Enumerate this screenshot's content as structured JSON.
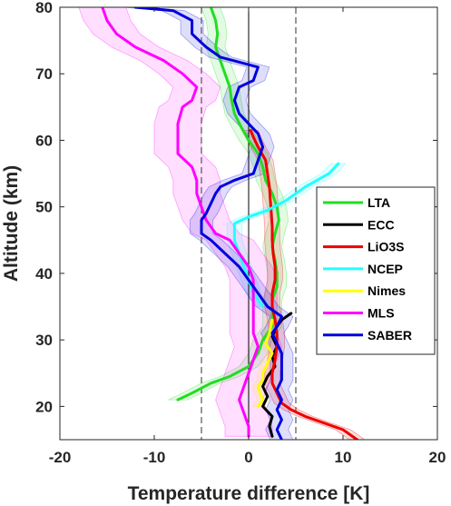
{
  "chart_data": {
    "type": "line",
    "xlabel": "Temperature difference [K]",
    "ylabel": "Altitude (km)",
    "xlim": [
      -20,
      20
    ],
    "ylim": [
      15,
      80
    ],
    "xticks": [
      -20,
      -10,
      0,
      10,
      20
    ],
    "yticks": [
      20,
      30,
      40,
      50,
      60,
      70,
      80
    ],
    "xtick_labels": [
      "-20",
      "-10",
      "0",
      "10",
      "20"
    ],
    "ytick_labels": [
      "20",
      "30",
      "40",
      "50",
      "60",
      "70",
      "80"
    ],
    "vlines": [
      {
        "x": -5,
        "style": "dashed",
        "color": "#555555"
      },
      {
        "x": 0,
        "style": "solid",
        "color": "#000000"
      },
      {
        "x": 5,
        "style": "dashed",
        "color": "#555555"
      }
    ],
    "grid": false,
    "legend_position": "right",
    "series": [
      {
        "name": "LTA",
        "color": "#22dd22",
        "band": 1.0,
        "points": [
          [
            -7.5,
            21
          ],
          [
            -6,
            22
          ],
          [
            -4,
            23.5
          ],
          [
            -2,
            24.5
          ],
          [
            0,
            26
          ],
          [
            0.5,
            27
          ],
          [
            1,
            28
          ],
          [
            1.5,
            30
          ],
          [
            2.5,
            32
          ],
          [
            2.5,
            34
          ],
          [
            2.5,
            36
          ],
          [
            3,
            38
          ],
          [
            3,
            40
          ],
          [
            2.8,
            42
          ],
          [
            2.5,
            44
          ],
          [
            2.8,
            46
          ],
          [
            3.2,
            48
          ],
          [
            3,
            50
          ],
          [
            2.5,
            52
          ],
          [
            1.8,
            54
          ],
          [
            1.5,
            56
          ],
          [
            1,
            58
          ],
          [
            0,
            60
          ],
          [
            -0.8,
            62
          ],
          [
            -1.5,
            64
          ],
          [
            -1.8,
            66
          ],
          [
            -2,
            68
          ],
          [
            -2.5,
            70
          ],
          [
            -3,
            72
          ],
          [
            -3.5,
            74
          ],
          [
            -3.3,
            76
          ],
          [
            -3.5,
            78
          ],
          [
            -4,
            80
          ]
        ]
      },
      {
        "name": "ECC",
        "color": "#000000",
        "band": 0,
        "points": [
          [
            2.5,
            15.5
          ],
          [
            2.2,
            17
          ],
          [
            2.5,
            18.5
          ],
          [
            1.5,
            20
          ],
          [
            2,
            21.5
          ],
          [
            1.5,
            23
          ],
          [
            2,
            24.5
          ],
          [
            2.8,
            26
          ],
          [
            2.5,
            27.5
          ],
          [
            3,
            29
          ],
          [
            2.5,
            30.5
          ],
          [
            3,
            32
          ],
          [
            3.5,
            33
          ],
          [
            4.5,
            34
          ]
        ]
      },
      {
        "name": "LiO3S",
        "color": "#ee0000",
        "band": 0.8,
        "points": [
          [
            11.5,
            15
          ],
          [
            10,
            16.5
          ],
          [
            8,
            17.5
          ],
          [
            6,
            18.5
          ],
          [
            4.5,
            19.5
          ],
          [
            3.5,
            20.5
          ],
          [
            3,
            22
          ],
          [
            2.5,
            23.5
          ],
          [
            2.5,
            25
          ],
          [
            2.8,
            27
          ],
          [
            3,
            29
          ],
          [
            3,
            31
          ],
          [
            2.8,
            33
          ],
          [
            2.5,
            35
          ],
          [
            2.5,
            37
          ],
          [
            2.8,
            39
          ],
          [
            2.8,
            41
          ],
          [
            2.6,
            43
          ],
          [
            2.5,
            45
          ],
          [
            2.5,
            47
          ],
          [
            2.4,
            49
          ],
          [
            2.3,
            51
          ],
          [
            2.2,
            53
          ],
          [
            2,
            55
          ],
          [
            1.8,
            57
          ],
          [
            1,
            59
          ],
          [
            0.5,
            60.5
          ],
          [
            0.2,
            61.5
          ]
        ]
      },
      {
        "name": "NCEP",
        "color": "#22ffff",
        "band": 0.8,
        "points": [
          [
            9.5,
            56.5
          ],
          [
            8.5,
            55
          ],
          [
            6,
            53
          ],
          [
            4,
            51
          ],
          [
            2,
            49.5
          ],
          [
            0,
            48.5
          ],
          [
            -1.5,
            47.5
          ],
          [
            -1.5,
            45
          ],
          [
            -1,
            43
          ],
          [
            -0.5,
            41
          ],
          [
            0,
            39
          ],
          [
            0.5,
            37
          ],
          [
            1.5,
            35
          ]
        ]
      },
      {
        "name": "Nimes",
        "color": "#ffff00",
        "band": 0.6,
        "points": [
          [
            2.5,
            33
          ],
          [
            2.2,
            31
          ],
          [
            1.8,
            29.5
          ],
          [
            2.5,
            28
          ],
          [
            2,
            26.5
          ],
          [
            1.5,
            25
          ],
          [
            1.5,
            24
          ],
          [
            1,
            23
          ],
          [
            1.2,
            22
          ],
          [
            1.5,
            21
          ],
          [
            1,
            20
          ]
        ]
      },
      {
        "name": "MLS",
        "color": "#ff00ff",
        "band": 2.5,
        "points": [
          [
            -15.5,
            80
          ],
          [
            -15,
            78
          ],
          [
            -14,
            76
          ],
          [
            -12,
            74
          ],
          [
            -9,
            72
          ],
          [
            -7,
            70
          ],
          [
            -5.5,
            68
          ],
          [
            -6,
            66
          ],
          [
            -7,
            65
          ],
          [
            -7.5,
            62.5
          ],
          [
            -7.5,
            60
          ],
          [
            -7.5,
            58
          ],
          [
            -6,
            56
          ],
          [
            -5.5,
            54
          ],
          [
            -5.5,
            52
          ],
          [
            -5,
            50
          ],
          [
            -4.5,
            48
          ],
          [
            -3.5,
            46
          ],
          [
            -2,
            45
          ],
          [
            -1,
            43
          ],
          [
            0,
            41
          ],
          [
            0.5,
            39
          ],
          [
            0.5,
            37
          ],
          [
            0.5,
            35
          ],
          [
            0.5,
            33
          ],
          [
            0.5,
            31
          ],
          [
            1,
            29
          ],
          [
            0.5,
            27
          ],
          [
            0,
            25
          ],
          [
            -0.5,
            23
          ],
          [
            -1,
            21
          ],
          [
            -0.5,
            19
          ],
          [
            0,
            17
          ],
          [
            0,
            15.5
          ]
        ]
      },
      {
        "name": "SABER",
        "color": "#0000dd",
        "band": 1.2,
        "points": [
          [
            -12,
            80
          ],
          [
            -8,
            79.5
          ],
          [
            -6,
            78
          ],
          [
            -6,
            76
          ],
          [
            -4.5,
            74
          ],
          [
            -3,
            72.5
          ],
          [
            1,
            71
          ],
          [
            0.5,
            69
          ],
          [
            -1,
            68
          ],
          [
            -1.5,
            66
          ],
          [
            -1,
            64
          ],
          [
            0,
            62.5
          ],
          [
            1,
            61
          ],
          [
            1.5,
            59
          ],
          [
            1,
            57
          ],
          [
            0.5,
            55
          ],
          [
            -1.5,
            54
          ],
          [
            -3,
            53
          ],
          [
            -3.5,
            52
          ],
          [
            -4,
            50.5
          ],
          [
            -4.5,
            49
          ],
          [
            -5,
            48
          ],
          [
            -5,
            46
          ],
          [
            -4,
            45
          ],
          [
            -2.5,
            43
          ],
          [
            -1,
            41
          ],
          [
            0,
            39
          ],
          [
            1,
            37
          ],
          [
            2,
            35
          ],
          [
            3.5,
            33.5
          ],
          [
            3,
            32
          ],
          [
            2.5,
            31
          ],
          [
            3,
            29.5
          ],
          [
            3.5,
            28
          ],
          [
            3.5,
            26
          ],
          [
            3.5,
            24
          ],
          [
            3,
            22.5
          ],
          [
            3.5,
            21
          ],
          [
            3,
            19.5
          ],
          [
            3.5,
            18
          ],
          [
            3,
            16.5
          ],
          [
            3.5,
            15
          ]
        ]
      }
    ]
  }
}
